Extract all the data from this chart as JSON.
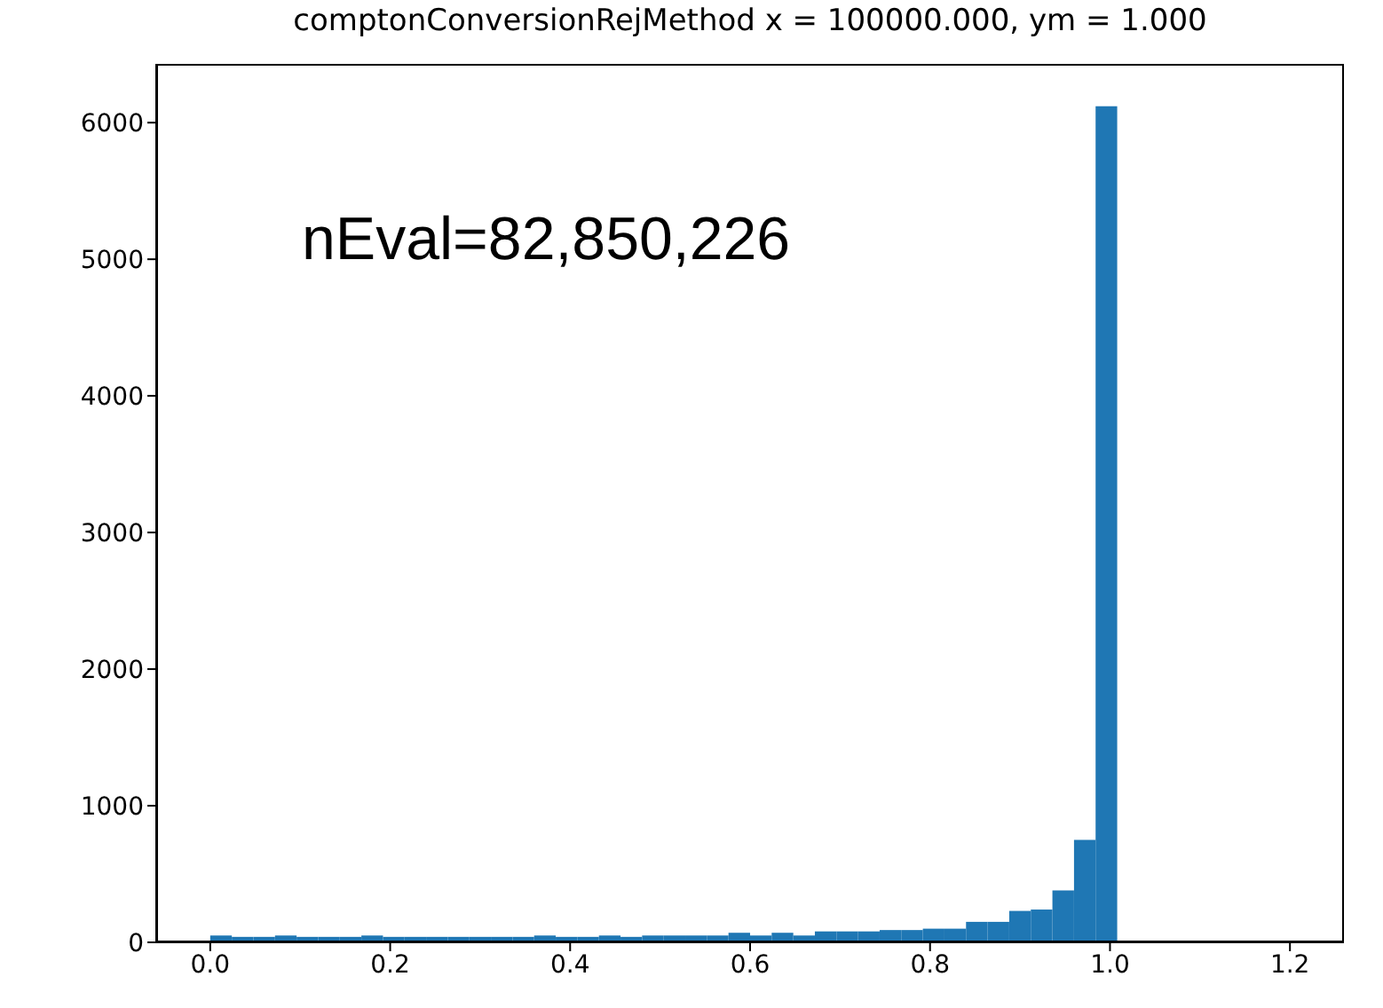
{
  "chart_data": {
    "type": "histogram",
    "title": "comptonConversionRejMethod x = 100000.000,  ym = 1.000",
    "bins": [
      0,
      0.024,
      0.048,
      0.072,
      0.096,
      0.12,
      0.144,
      0.168,
      0.192,
      0.216,
      0.24,
      0.264,
      0.288,
      0.312,
      0.336,
      0.36,
      0.384,
      0.408,
      0.432,
      0.456,
      0.48,
      0.504,
      0.528,
      0.552,
      0.576,
      0.6,
      0.624,
      0.648,
      0.672,
      0.696,
      0.72,
      0.744,
      0.768,
      0.792,
      0.816,
      0.84,
      0.864,
      0.888,
      0.912,
      0.936,
      0.96,
      0.984,
      1.008,
      1.032,
      1.056,
      1.08,
      1.104,
      1.128,
      1.152,
      1.176,
      1.2
    ],
    "values": [
      50,
      40,
      40,
      50,
      40,
      40,
      40,
      50,
      40,
      40,
      40,
      40,
      40,
      40,
      40,
      50,
      40,
      40,
      50,
      40,
      50,
      50,
      50,
      50,
      70,
      50,
      70,
      50,
      80,
      80,
      80,
      90,
      90,
      100,
      100,
      150,
      150,
      230,
      240,
      380,
      750,
      6120,
      0,
      0,
      0,
      0,
      0,
      0,
      0,
      0
    ],
    "color": "#1f77b4",
    "xlim": [
      -0.06,
      1.26
    ],
    "xticks": [
      {
        "value": 0,
        "label": "0.0"
      },
      {
        "value": 0.2,
        "label": "0.2"
      },
      {
        "value": 0.4,
        "label": "0.4"
      },
      {
        "value": 0.6,
        "label": "0.6"
      },
      {
        "value": 0.8,
        "label": "0.8"
      },
      {
        "value": 1,
        "label": "1.0"
      },
      {
        "value": 1.2,
        "label": "1.2"
      }
    ],
    "ylim": [
      0,
      6430
    ],
    "yticks": [
      0,
      1000,
      2000,
      3000,
      4000,
      5000,
      6000
    ],
    "annotations": [
      "nEval=82,850,226"
    ]
  }
}
